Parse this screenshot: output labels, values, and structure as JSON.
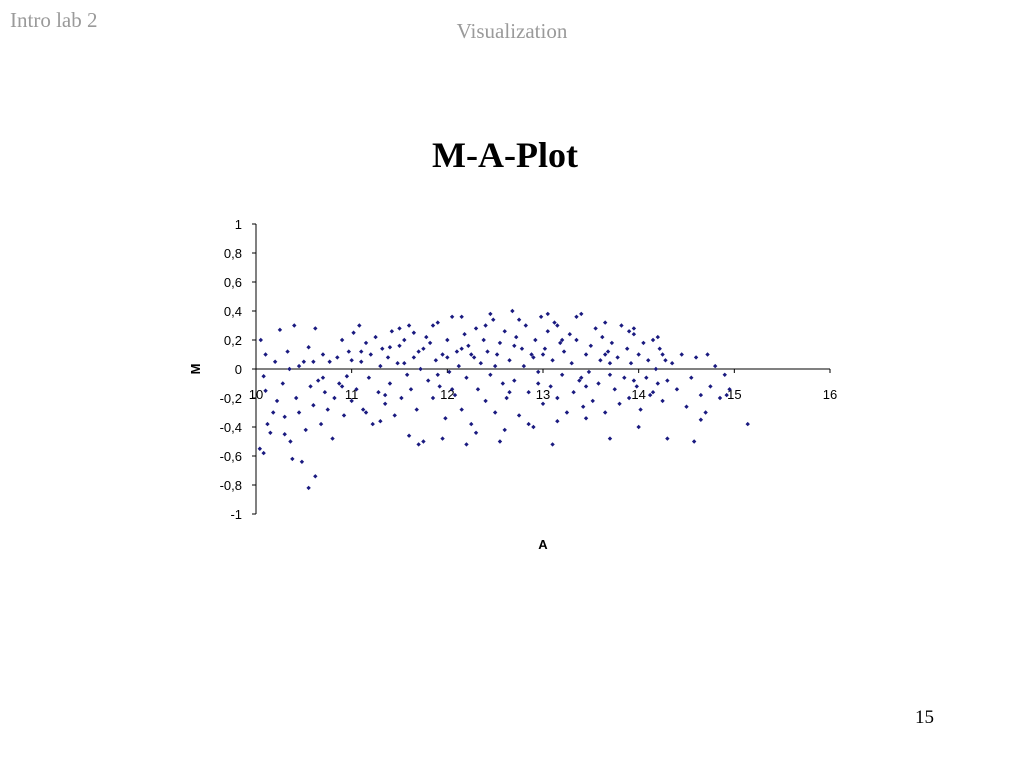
{
  "header": {
    "corner_label": "Intro lab 2",
    "section_title": "Visualization"
  },
  "slide": {
    "title": "M-A-Plot",
    "page_number": "15"
  },
  "colors": {
    "marker": "#1a1a80",
    "axis": "#000000",
    "header_text": "#9a9a9a"
  },
  "chart_data": {
    "type": "scatter",
    "title": "",
    "xlabel": "A",
    "ylabel": "M",
    "xlim": [
      10,
      16
    ],
    "ylim": [
      -1,
      1
    ],
    "x_ticks": [
      "10",
      "11",
      "12",
      "13",
      "14",
      "15",
      "16"
    ],
    "y_ticks": [
      "1",
      "0,8",
      "0,6",
      "0,4",
      "0,2",
      "0",
      "-0,2",
      "-0,4",
      "-0,6",
      "-0,8",
      "-1"
    ],
    "y_tick_values": [
      1,
      0.8,
      0.6,
      0.4,
      0.2,
      0,
      -0.2,
      -0.4,
      -0.6,
      -0.8,
      -1
    ],
    "x_tick_values": [
      10,
      11,
      12,
      13,
      14,
      15,
      16
    ],
    "grid": false,
    "legend": "none",
    "marker_shape": "diamond",
    "points": [
      [
        10.05,
        0.2
      ],
      [
        10.08,
        -0.05
      ],
      [
        10.1,
        -0.15
      ],
      [
        10.12,
        -0.38
      ],
      [
        10.15,
        -0.44
      ],
      [
        10.18,
        -0.3
      ],
      [
        10.2,
        0.05
      ],
      [
        10.22,
        -0.22
      ],
      [
        10.25,
        0.27
      ],
      [
        10.28,
        -0.1
      ],
      [
        10.3,
        -0.33
      ],
      [
        10.33,
        0.12
      ],
      [
        10.36,
        -0.5
      ],
      [
        10.38,
        -0.62
      ],
      [
        10.4,
        0.3
      ],
      [
        10.42,
        -0.2
      ],
      [
        10.45,
        -0.3
      ],
      [
        10.48,
        -0.64
      ],
      [
        10.5,
        0.05
      ],
      [
        10.52,
        -0.42
      ],
      [
        10.55,
        0.15
      ],
      [
        10.57,
        -0.12
      ],
      [
        10.6,
        -0.25
      ],
      [
        10.62,
        0.28
      ],
      [
        10.65,
        -0.08
      ],
      [
        10.68,
        -0.38
      ],
      [
        10.7,
        0.1
      ],
      [
        10.72,
        -0.16
      ],
      [
        10.75,
        -0.28
      ],
      [
        10.77,
        0.05
      ],
      [
        10.8,
        -0.48
      ],
      [
        10.82,
        -0.2
      ],
      [
        10.85,
        0.08
      ],
      [
        10.87,
        -0.1
      ],
      [
        10.9,
        0.2
      ],
      [
        10.92,
        -0.32
      ],
      [
        10.95,
        -0.05
      ],
      [
        10.97,
        0.12
      ],
      [
        11.0,
        -0.22
      ],
      [
        11.02,
        0.25
      ],
      [
        10.55,
        -0.82
      ],
      [
        10.62,
        -0.74
      ],
      [
        10.08,
        -0.58
      ],
      [
        10.3,
        -0.45
      ],
      [
        10.04,
        -0.55
      ],
      [
        11.05,
        -0.14
      ],
      [
        11.08,
        0.3
      ],
      [
        11.1,
        0.05
      ],
      [
        11.12,
        -0.28
      ],
      [
        11.15,
        0.18
      ],
      [
        11.18,
        -0.06
      ],
      [
        11.2,
        0.1
      ],
      [
        11.22,
        -0.38
      ],
      [
        11.25,
        0.22
      ],
      [
        11.28,
        -0.16
      ],
      [
        11.3,
        0.02
      ],
      [
        11.32,
        0.14
      ],
      [
        11.35,
        -0.24
      ],
      [
        11.38,
        0.08
      ],
      [
        11.4,
        -0.1
      ],
      [
        11.42,
        0.26
      ],
      [
        11.45,
        -0.32
      ],
      [
        11.48,
        0.04
      ],
      [
        11.5,
        0.16
      ],
      [
        11.52,
        -0.2
      ],
      [
        11.55,
        0.2
      ],
      [
        11.58,
        -0.04
      ],
      [
        11.6,
        0.3
      ],
      [
        11.62,
        -0.14
      ],
      [
        11.65,
        0.08
      ],
      [
        11.68,
        -0.28
      ],
      [
        11.7,
        0.12
      ],
      [
        11.72,
        0.0
      ],
      [
        11.75,
        -0.5
      ],
      [
        11.78,
        0.22
      ],
      [
        11.8,
        -0.08
      ],
      [
        11.82,
        0.18
      ],
      [
        11.85,
        -0.2
      ],
      [
        11.88,
        0.06
      ],
      [
        11.9,
        0.32
      ],
      [
        11.92,
        -0.12
      ],
      [
        11.95,
        0.1
      ],
      [
        11.98,
        -0.34
      ],
      [
        12.0,
        0.2
      ],
      [
        12.02,
        -0.02
      ],
      [
        12.05,
        0.36
      ],
      [
        12.08,
        -0.18
      ],
      [
        12.1,
        0.12
      ],
      [
        12.12,
        0.02
      ],
      [
        12.15,
        -0.28
      ],
      [
        12.18,
        0.24
      ],
      [
        12.2,
        -0.06
      ],
      [
        12.22,
        0.16
      ],
      [
        12.25,
        -0.38
      ],
      [
        12.28,
        0.08
      ],
      [
        12.3,
        0.28
      ],
      [
        12.32,
        -0.14
      ],
      [
        12.35,
        0.04
      ],
      [
        12.38,
        0.2
      ],
      [
        12.4,
        -0.22
      ],
      [
        12.42,
        0.12
      ],
      [
        12.45,
        -0.04
      ],
      [
        12.48,
        0.34
      ],
      [
        12.5,
        -0.3
      ],
      [
        12.52,
        0.1
      ],
      [
        12.55,
        0.18
      ],
      [
        12.58,
        -0.1
      ],
      [
        12.6,
        0.26
      ],
      [
        12.62,
        -0.2
      ],
      [
        12.65,
        0.06
      ],
      [
        12.68,
        0.4
      ],
      [
        12.7,
        -0.08
      ],
      [
        12.72,
        0.22
      ],
      [
        12.75,
        -0.32
      ],
      [
        12.78,
        0.14
      ],
      [
        12.8,
        0.02
      ],
      [
        12.82,
        0.3
      ],
      [
        12.85,
        -0.16
      ],
      [
        12.88,
        0.1
      ],
      [
        12.9,
        -0.4
      ],
      [
        12.92,
        0.2
      ],
      [
        12.95,
        -0.02
      ],
      [
        12.98,
        0.36
      ],
      [
        13.0,
        -0.24
      ],
      [
        13.02,
        0.14
      ],
      [
        13.05,
        0.26
      ],
      [
        13.08,
        -0.12
      ],
      [
        13.1,
        0.06
      ],
      [
        13.12,
        0.32
      ],
      [
        13.15,
        -0.2
      ],
      [
        13.18,
        0.18
      ],
      [
        13.2,
        -0.04
      ],
      [
        13.22,
        0.12
      ],
      [
        13.25,
        -0.3
      ],
      [
        13.28,
        0.24
      ],
      [
        13.3,
        0.04
      ],
      [
        13.32,
        -0.16
      ],
      [
        13.35,
        0.2
      ],
      [
        13.38,
        -0.08
      ],
      [
        13.4,
        0.38
      ],
      [
        13.42,
        -0.26
      ],
      [
        13.45,
        0.1
      ],
      [
        13.48,
        -0.02
      ],
      [
        13.5,
        0.16
      ],
      [
        13.52,
        -0.22
      ],
      [
        13.55,
        0.28
      ],
      [
        13.58,
        -0.1
      ],
      [
        13.6,
        0.06
      ],
      [
        13.62,
        0.22
      ],
      [
        13.65,
        -0.3
      ],
      [
        13.68,
        0.12
      ],
      [
        13.7,
        -0.04
      ],
      [
        13.72,
        0.18
      ],
      [
        13.75,
        -0.14
      ],
      [
        13.78,
        0.08
      ],
      [
        13.8,
        -0.24
      ],
      [
        13.82,
        0.3
      ],
      [
        13.85,
        -0.06
      ],
      [
        13.88,
        0.14
      ],
      [
        13.9,
        -0.2
      ],
      [
        13.92,
        0.04
      ],
      [
        13.95,
        0.24
      ],
      [
        13.98,
        -0.12
      ],
      [
        14.0,
        0.1
      ],
      [
        14.02,
        -0.28
      ],
      [
        14.05,
        0.18
      ],
      [
        14.08,
        -0.06
      ],
      [
        14.1,
        0.06
      ],
      [
        14.12,
        -0.18
      ],
      [
        14.15,
        0.2
      ],
      [
        14.18,
        0.0
      ],
      [
        14.2,
        -0.1
      ],
      [
        14.22,
        0.14
      ],
      [
        14.25,
        -0.22
      ],
      [
        14.28,
        0.06
      ],
      [
        14.3,
        -0.08
      ],
      [
        14.35,
        0.04
      ],
      [
        14.4,
        -0.14
      ],
      [
        14.45,
        0.1
      ],
      [
        14.5,
        -0.26
      ],
      [
        14.55,
        -0.06
      ],
      [
        14.6,
        0.08
      ],
      [
        14.65,
        -0.18
      ],
      [
        14.7,
        -0.3
      ],
      [
        14.75,
        -0.12
      ],
      [
        14.8,
        0.02
      ],
      [
        14.85,
        -0.2
      ],
      [
        14.9,
        -0.04
      ],
      [
        14.95,
        -0.14
      ],
      [
        14.58,
        -0.5
      ],
      [
        14.72,
        0.1
      ],
      [
        15.14,
        -0.38
      ],
      [
        14.92,
        -0.18
      ],
      [
        14.3,
        -0.48
      ],
      [
        14.65,
        -0.35
      ],
      [
        10.1,
        0.1
      ],
      [
        10.35,
        0.0
      ],
      [
        10.6,
        0.05
      ],
      [
        10.9,
        -0.12
      ],
      [
        11.15,
        -0.3
      ],
      [
        11.4,
        0.15
      ],
      [
        11.65,
        0.25
      ],
      [
        11.9,
        -0.04
      ],
      [
        12.15,
        0.14
      ],
      [
        12.4,
        0.3
      ],
      [
        12.65,
        -0.16
      ],
      [
        12.9,
        0.08
      ],
      [
        13.15,
        0.3
      ],
      [
        13.4,
        -0.06
      ],
      [
        13.65,
        0.1
      ],
      [
        13.9,
        0.26
      ],
      [
        14.15,
        -0.16
      ],
      [
        11.0,
        0.06
      ],
      [
        12.0,
        0.08
      ],
      [
        13.0,
        0.1
      ],
      [
        11.3,
        -0.36
      ],
      [
        11.6,
        -0.46
      ],
      [
        11.95,
        -0.48
      ],
      [
        12.3,
        -0.44
      ],
      [
        12.6,
        -0.42
      ],
      [
        12.85,
        -0.38
      ],
      [
        13.15,
        -0.36
      ],
      [
        13.45,
        -0.34
      ],
      [
        13.7,
        -0.48
      ],
      [
        14.0,
        -0.4
      ],
      [
        11.5,
        0.28
      ],
      [
        11.85,
        0.3
      ],
      [
        12.15,
        0.36
      ],
      [
        12.45,
        0.38
      ],
      [
        12.75,
        0.34
      ],
      [
        13.05,
        0.38
      ],
      [
        13.35,
        0.36
      ],
      [
        13.65,
        0.32
      ],
      [
        13.95,
        0.28
      ],
      [
        14.2,
        0.22
      ],
      [
        11.7,
        -0.52
      ],
      [
        12.2,
        -0.52
      ],
      [
        12.55,
        -0.5
      ],
      [
        13.1,
        -0.52
      ],
      [
        10.45,
        0.02
      ],
      [
        10.7,
        -0.06
      ],
      [
        11.1,
        0.12
      ],
      [
        11.35,
        -0.18
      ],
      [
        11.55,
        0.04
      ],
      [
        11.75,
        0.14
      ],
      [
        12.05,
        -0.14
      ],
      [
        12.25,
        0.1
      ],
      [
        12.5,
        0.02
      ],
      [
        12.7,
        0.16
      ],
      [
        12.95,
        -0.1
      ],
      [
        13.2,
        0.2
      ],
      [
        13.45,
        -0.12
      ],
      [
        13.7,
        0.04
      ],
      [
        13.95,
        -0.08
      ],
      [
        14.25,
        0.1
      ]
    ]
  }
}
